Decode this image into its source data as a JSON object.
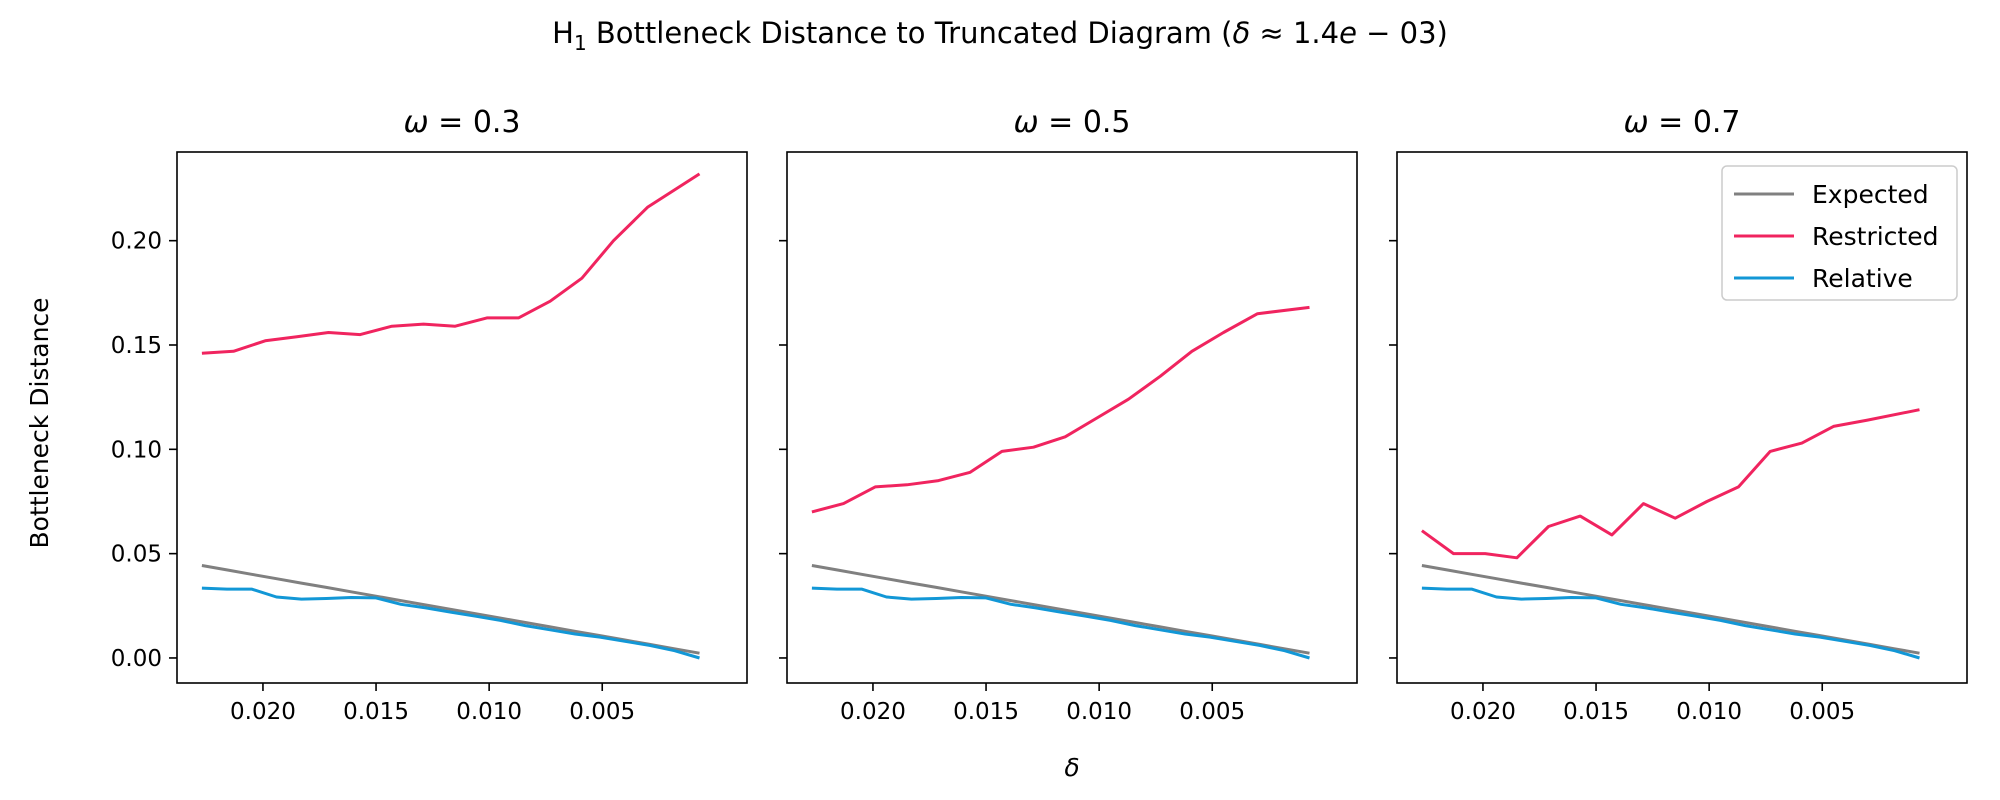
{
  "suptitle_parts": {
    "prefix": "H",
    "subscript": "1",
    "main": " Bottleneck Distance to Truncated Diagram (",
    "delta_symbol": "δ",
    "approx": " ≈ 1.4",
    "e_symbol": "e",
    "exp": " − 03)"
  },
  "chart_data": {
    "type": "line",
    "title": "H1 Bottleneck Distance to Truncated Diagram (δ≈1.4e−03)",
    "xlabel": "δ",
    "ylabel": "Bottleneck Distance",
    "x_direction": "decreasing",
    "xlim": [
      0.0238,
      -0.0014
    ],
    "ylim": [
      -0.012,
      0.2425
    ],
    "x_ticks": [
      0.02,
      0.015,
      0.01,
      0.005
    ],
    "x_tick_labels": [
      "0.020",
      "0.015",
      "0.010",
      "0.005"
    ],
    "y_ticks": [
      0.0,
      0.05,
      0.1,
      0.15,
      0.2
    ],
    "y_tick_labels": [
      "0.00",
      "0.05",
      "0.10",
      "0.15",
      "0.20"
    ],
    "legend_location": "upper right",
    "colors": {
      "Expected": "#808080",
      "Restricted": "#f0245f",
      "Relative": "#1297d6"
    },
    "x": [
      0.0227,
      0.0216,
      0.0205,
      0.0194,
      0.0183,
      0.0172,
      0.0161,
      0.015,
      0.0139,
      0.0128,
      0.0117,
      0.0106,
      0.0095,
      0.0084,
      0.0073,
      0.0062,
      0.0051,
      0.004,
      0.0029,
      0.0018,
      0.0007
    ],
    "panels": [
      {
        "omega_label": "0.3",
        "series": [
          {
            "name": "Expected",
            "values": [
              0.0443,
              0.0422,
              0.0401,
              0.038,
              0.0359,
              0.0338,
              0.0317,
              0.0296,
              0.0275,
              0.0254,
              0.0233,
              0.0212,
              0.0191,
              0.017,
              0.0149,
              0.0128,
              0.0107,
              0.0086,
              0.0065,
              0.0044,
              0.0023
            ]
          },
          {
            "name": "Restricted",
            "values": [
              0.146,
              0.147,
              0.152,
              0.154,
              0.156,
              0.155,
              0.159,
              0.16,
              0.159,
              0.163,
              0.163,
              0.171,
              0.182,
              0.2,
              0.216,
              0.232
            ]
          },
          {
            "name": "Relative",
            "values": [
              0.0335,
              0.033,
              0.033,
              0.0292,
              0.0282,
              0.0285,
              0.029,
              0.0288,
              0.0257,
              0.024,
              0.022,
              0.02,
              0.018,
              0.0155,
              0.0135,
              0.0115,
              0.01,
              0.008,
              0.006,
              0.0035,
              0.0
            ]
          }
        ],
        "restricted_x": [
          0.0227,
          0.0213,
          0.0199,
          0.0185,
          0.0171,
          0.0157,
          0.0143,
          0.0129,
          0.0115,
          0.0101,
          0.0087,
          0.0073,
          0.0059,
          0.0045,
          0.003,
          0.0007
        ]
      },
      {
        "omega_label": "0.5",
        "series": [
          {
            "name": "Expected",
            "values": [
              0.0443,
              0.0422,
              0.0401,
              0.038,
              0.0359,
              0.0338,
              0.0317,
              0.0296,
              0.0275,
              0.0254,
              0.0233,
              0.0212,
              0.0191,
              0.017,
              0.0149,
              0.0128,
              0.0107,
              0.0086,
              0.0065,
              0.0044,
              0.0023
            ]
          },
          {
            "name": "Restricted",
            "values": [
              0.07,
              0.074,
              0.082,
              0.083,
              0.085,
              0.089,
              0.099,
              0.101,
              0.106,
              0.115,
              0.124,
              0.135,
              0.147,
              0.156,
              0.165,
              0.168
            ]
          },
          {
            "name": "Relative",
            "values": [
              0.0335,
              0.033,
              0.033,
              0.0292,
              0.0282,
              0.0285,
              0.029,
              0.0288,
              0.0257,
              0.024,
              0.022,
              0.02,
              0.018,
              0.0155,
              0.0135,
              0.0115,
              0.01,
              0.008,
              0.006,
              0.0035,
              0.0
            ]
          }
        ],
        "restricted_x": [
          0.0227,
          0.0213,
          0.0199,
          0.0185,
          0.0171,
          0.0157,
          0.0143,
          0.0129,
          0.0115,
          0.0101,
          0.0087,
          0.0073,
          0.0059,
          0.0045,
          0.003,
          0.0007
        ]
      },
      {
        "omega_label": "0.7",
        "series": [
          {
            "name": "Expected",
            "values": [
              0.0443,
              0.0422,
              0.0401,
              0.038,
              0.0359,
              0.0338,
              0.0317,
              0.0296,
              0.0275,
              0.0254,
              0.0233,
              0.0212,
              0.0191,
              0.017,
              0.0149,
              0.0128,
              0.0107,
              0.0086,
              0.0065,
              0.0044,
              0.0023
            ]
          },
          {
            "name": "Restricted",
            "values": [
              0.061,
              0.05,
              0.05,
              0.048,
              0.063,
              0.068,
              0.059,
              0.074,
              0.067,
              0.075,
              0.082,
              0.099,
              0.103,
              0.111,
              0.114,
              0.119
            ]
          },
          {
            "name": "Relative",
            "values": [
              0.0335,
              0.033,
              0.033,
              0.0292,
              0.0282,
              0.0285,
              0.029,
              0.0288,
              0.0257,
              0.024,
              0.022,
              0.02,
              0.018,
              0.0155,
              0.0135,
              0.0115,
              0.01,
              0.008,
              0.006,
              0.0035,
              0.0
            ]
          }
        ],
        "restricted_x": [
          0.0227,
          0.0213,
          0.0199,
          0.0185,
          0.0171,
          0.0157,
          0.0143,
          0.0129,
          0.0115,
          0.0101,
          0.0087,
          0.0073,
          0.0059,
          0.0045,
          0.003,
          0.0007
        ]
      }
    ]
  }
}
